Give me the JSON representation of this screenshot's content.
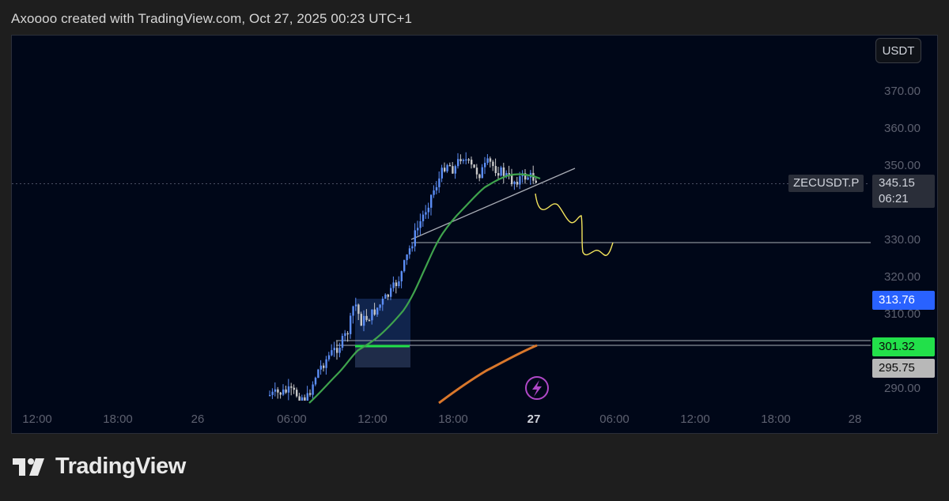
{
  "header": {
    "text": "Axoooo created with TradingView.com, Oct 27, 2025 00:23 UTC+1"
  },
  "chart": {
    "currency_button": "USDT",
    "symbol": "ZECUSDT.P",
    "last_price": "345.15",
    "countdown": "06:21",
    "price_ticks": [
      "370.00",
      "360.00",
      "350.00",
      "330.00",
      "320.00",
      "310.00",
      "290.00"
    ],
    "time_ticks": [
      "12:00",
      "18:00",
      "26",
      "06:00",
      "12:00",
      "18:00",
      "27",
      "06:00",
      "12:00",
      "18:00",
      "28"
    ],
    "badges": {
      "blue": "313.76",
      "green": "301.32",
      "gray": "295.75"
    },
    "colors": {
      "background": "#000718",
      "candle_up": "#5b8df5",
      "candle_down": "#c8c8c8",
      "ma_green": "#3fa34d",
      "ma_orange": "#d9772b",
      "projection": "#f2e45c",
      "zone": "#1e3c78",
      "support": "#22e04a"
    },
    "alert_icon": "lightning-icon"
  },
  "footer": {
    "brand": "TradingView",
    "logo_icon": "tradingview-logo-icon"
  }
}
